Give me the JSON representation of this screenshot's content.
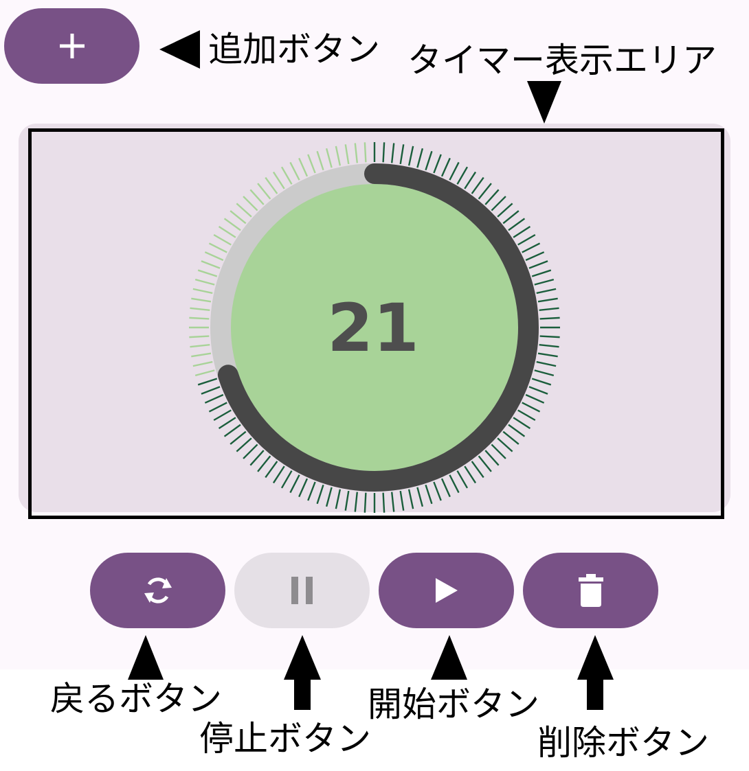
{
  "timer": {
    "remaining": "21",
    "total": 30,
    "ring_color": "#474747",
    "track_color": "#cbcbcb",
    "fill_color": "#a8d398",
    "tick_color_active": "#1b5e3c",
    "tick_color_inactive": "#a8d398"
  },
  "buttons": {
    "add": {
      "icon": "plus-icon"
    },
    "reset": {
      "icon": "refresh-icon"
    },
    "pause": {
      "icon": "pause-icon",
      "disabled": true
    },
    "play": {
      "icon": "play-icon"
    },
    "delete": {
      "icon": "trash-icon"
    }
  },
  "annotations": {
    "add_label": "追加ボタン",
    "display_label": "タイマー表示エリア",
    "back_label": "戻るボタン",
    "stop_label": "停止ボタン",
    "start_label": "開始ボタン",
    "delete_label": "削除ボタン"
  },
  "colors": {
    "primary": "#785186",
    "disabled": "#e5e0e6",
    "surface": "#fdf8fd",
    "card": "#e9dfe9"
  }
}
